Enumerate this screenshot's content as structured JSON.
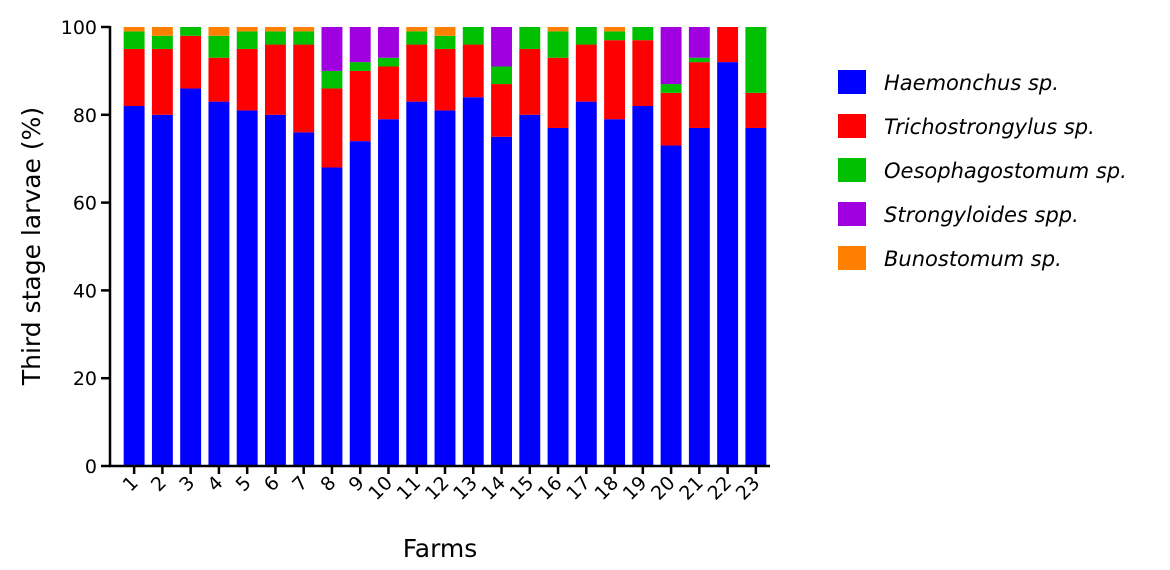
{
  "chart_data": {
    "type": "bar",
    "stacked": true,
    "xlabel": "Farms",
    "ylabel": "Third stage larvae (%)",
    "ylim": [
      0,
      100
    ],
    "yticks": [
      0,
      20,
      40,
      60,
      80,
      100
    ],
    "categories": [
      "1",
      "2",
      "3",
      "4",
      "5",
      "6",
      "7",
      "8",
      "9",
      "10",
      "11",
      "12",
      "13",
      "14",
      "15",
      "16",
      "17",
      "18",
      "19",
      "20",
      "21",
      "22",
      "23"
    ],
    "series": [
      {
        "name": "Haemonchus sp.",
        "color": "#0000ff",
        "values": [
          82,
          80,
          86,
          83,
          81,
          80,
          76,
          68,
          74,
          79,
          83,
          81,
          84,
          75,
          80,
          77,
          83,
          79,
          82,
          73,
          77,
          92,
          77
        ]
      },
      {
        "name": "Trichostrongylus sp.",
        "color": "#ff0000",
        "values": [
          13,
          15,
          12,
          10,
          14,
          16,
          20,
          18,
          16,
          12,
          13,
          14,
          12,
          12,
          15,
          16,
          13,
          18,
          15,
          12,
          15,
          8,
          8
        ]
      },
      {
        "name": "Oesophagostomum sp.",
        "color": "#00c000",
        "values": [
          4,
          3,
          2,
          5,
          4,
          3,
          3,
          4,
          2,
          2,
          3,
          3,
          4,
          4,
          5,
          6,
          4,
          2,
          3,
          2,
          1,
          0,
          15
        ]
      },
      {
        "name": "Strongyloides spp.",
        "color": "#a000e0",
        "values": [
          0,
          0,
          0,
          0,
          0,
          0,
          0,
          10,
          8,
          7,
          0,
          0,
          0,
          9,
          0,
          0,
          0,
          0,
          0,
          13,
          7,
          0,
          0
        ]
      },
      {
        "name": "Bunostomum sp.",
        "color": "#ff8000",
        "values": [
          1,
          2,
          0,
          2,
          1,
          1,
          1,
          0,
          0,
          0,
          1,
          2,
          0,
          0,
          0,
          1,
          0,
          1,
          0,
          0,
          0,
          0,
          0
        ]
      }
    ],
    "legend_position": "right",
    "grid": false
  }
}
